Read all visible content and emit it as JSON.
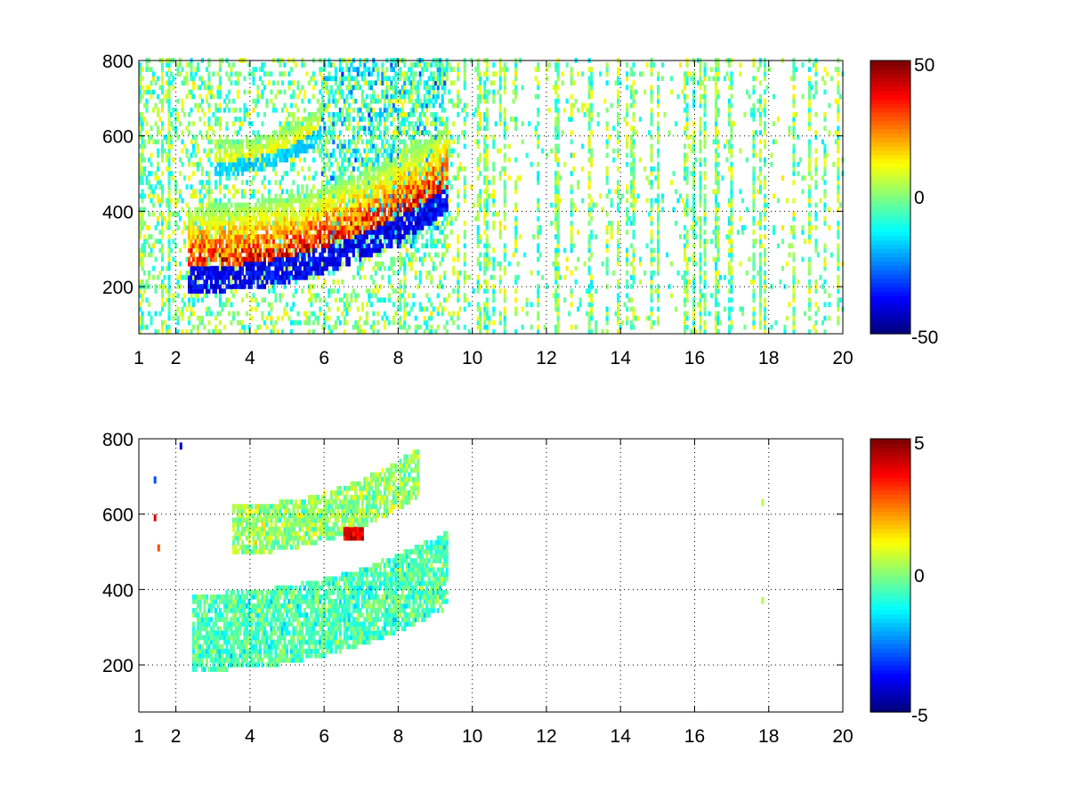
{
  "chart_data": [
    {
      "type": "heatmap",
      "title": "",
      "xlabel": "",
      "ylabel": "",
      "xlim": [
        1,
        20
      ],
      "ylim": [
        75,
        800
      ],
      "x_ticks": [
        1,
        2,
        4,
        6,
        8,
        10,
        12,
        14,
        16,
        18,
        20
      ],
      "y_ticks": [
        200,
        400,
        600,
        800
      ],
      "x_tick_labels": [
        "1",
        "2",
        "4",
        "6",
        "8",
        "10",
        "12",
        "14",
        "16",
        "18",
        "20"
      ],
      "y_tick_labels": [
        "200",
        "400",
        "600",
        "800"
      ],
      "grid": true,
      "colormap": "jet",
      "clim": [
        -50,
        50
      ],
      "colorbar_labels": [
        "50",
        "0",
        "-50"
      ],
      "features": [
        {
          "kind": "lower-arc",
          "x_start": 2.3,
          "x_end": 9.3,
          "y_center_start": 240,
          "y_center_end": 450,
          "band_below": 60,
          "band_above": 170,
          "value_above_center": 40,
          "value_below_center": -45
        },
        {
          "kind": "upper-arc",
          "x_start": 3.0,
          "x_end": 5.9,
          "y_center_start": 520,
          "y_center_end": 610,
          "band_below": 30,
          "band_above": 60,
          "value_above_center": 15,
          "value_below_center": -20
        },
        {
          "kind": "patch",
          "x_start": 5.8,
          "x_end": 9.3,
          "y_start": 300,
          "y_end": 800,
          "mean_value": -10
        },
        {
          "kind": "noise",
          "x_start": 1,
          "x_end": 20,
          "y_start": 75,
          "y_end": 800,
          "values": [
            -15,
            15
          ]
        }
      ]
    },
    {
      "type": "heatmap",
      "title": "",
      "xlabel": "",
      "ylabel": "",
      "xlim": [
        1,
        20
      ],
      "ylim": [
        75,
        800
      ],
      "x_ticks": [
        1,
        2,
        4,
        6,
        8,
        10,
        12,
        14,
        16,
        18,
        20
      ],
      "y_ticks": [
        200,
        400,
        600,
        800
      ],
      "x_tick_labels": [
        "1",
        "2",
        "4",
        "6",
        "8",
        "10",
        "12",
        "14",
        "16",
        "18",
        "20"
      ],
      "y_tick_labels": [
        "200",
        "400",
        "600",
        "800"
      ],
      "grid": true,
      "colormap": "jet",
      "clim": [
        -5,
        5
      ],
      "colorbar_labels": [
        "5",
        "0",
        "-5"
      ],
      "features": [
        {
          "kind": "lower-arc",
          "x_start": 2.4,
          "x_end": 9.3,
          "y_center_start": 235,
          "y_center_end": 400,
          "band_below": 55,
          "band_above": 150,
          "mean_value": -0.5
        },
        {
          "kind": "upper-arc",
          "x_start": 3.5,
          "x_end": 8.5,
          "y_center_start": 530,
          "y_center_end": 680,
          "band_below": 40,
          "band_above": 90,
          "mean_value": 0.2
        },
        {
          "kind": "hotspot",
          "x_start": 6.5,
          "x_end": 7.0,
          "y_start": 530,
          "y_end": 555,
          "mean_value": 4
        },
        {
          "kind": "scattered-points",
          "x": [
            1.4,
            1.4,
            1.5,
            2.1,
            17.8,
            17.8
          ],
          "y": [
            700,
            600,
            520,
            790,
            640,
            380
          ],
          "values": [
            -3,
            4,
            3,
            -4,
            0.5,
            0.5
          ]
        }
      ]
    }
  ]
}
